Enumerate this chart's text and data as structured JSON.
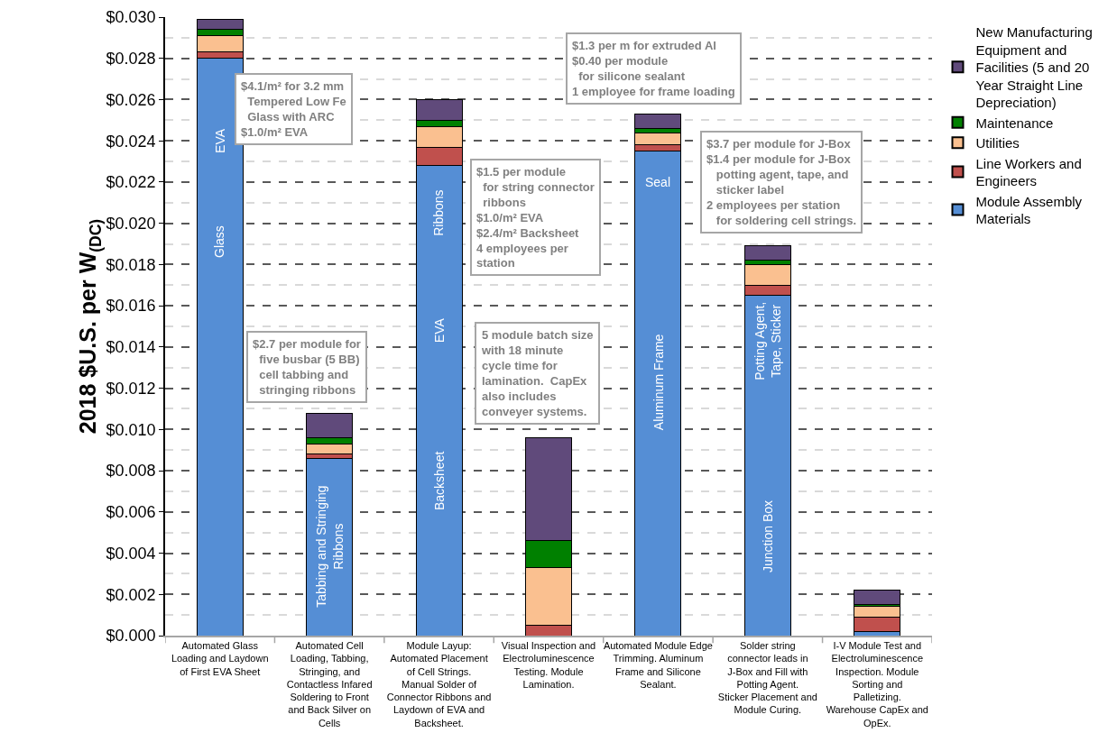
{
  "chart_data": {
    "type": "bar",
    "stacked": true,
    "ylabel": "2018 $U.S. per W$_{(DC)}$",
    "categories": [
      "Automated Glass Loading and Laydown of First EVA Sheet",
      "Automated Cell Loading, Tabbing, Stringing, and Contactless Infared Soldering to Front and Back Silver on Cells",
      "Module Layup: Automated Placement of Cell Strings. Manual Solder of Connector Ribbons and Laydown of EVA and Backsheet.",
      "Visual Inspection and Electroluminescence Testing. Module Lamination.",
      "Automated Module Edge Trimming. Aluminum Frame and Silicone Sealant.",
      "Solder string connector leads in J-Box and Fill with Potting Agent. Sticker Placement and Module Curing.",
      "I-V Module Test and Electroluminescence Inspection. Module Sorting and Palletizing. Warehouse CapEx and OpEx."
    ],
    "series": [
      {
        "name": "Module Assembly Materials",
        "color": "#558ed5",
        "values": [
          0.028,
          0.0086,
          0.0228,
          0,
          0.0235,
          0.0165,
          0.0002
        ]
      },
      {
        "name": "Line Workers and Engineers",
        "color": "#c0504d",
        "values": [
          0.0003,
          0.0002,
          0.0009,
          0.0005,
          0.0003,
          0.0005,
          0.0007
        ]
      },
      {
        "name": "Utilities",
        "color": "#fac090",
        "values": [
          0.0008,
          0.0005,
          0.001,
          0.0028,
          0.0006,
          0.001,
          0.0005
        ]
      },
      {
        "name": "Maintenance",
        "color": "#008000",
        "values": [
          0.0003,
          0.0003,
          0.0003,
          0.0013,
          0.0002,
          0.0002,
          0.0001
        ]
      },
      {
        "name": "New Manufacturing Equipment and Facilities (5 and 20 Year Straight Line Depreciation)",
        "color": "#604a7b",
        "values": [
          0.0005,
          0.0012,
          0.001,
          0.005,
          0.0007,
          0.0007,
          0.0007
        ]
      }
    ],
    "ylim": [
      0,
      0.03
    ],
    "yticks": [
      {
        "value": 0,
        "label": "$0.000"
      },
      {
        "value": 0.002,
        "label": "$0.002"
      },
      {
        "value": 0.004,
        "label": "$0.004"
      },
      {
        "value": 0.006,
        "label": "$0.006"
      },
      {
        "value": 0.008,
        "label": "$0.008"
      },
      {
        "value": 0.01,
        "label": "$0.010"
      },
      {
        "value": 0.012,
        "label": "$0.012"
      },
      {
        "value": 0.014,
        "label": "$0.014"
      },
      {
        "value": 0.016,
        "label": "$0.016"
      },
      {
        "value": 0.018,
        "label": "$0.018"
      },
      {
        "value": 0.02,
        "label": "$0.020"
      },
      {
        "value": 0.022,
        "label": "$0.022"
      },
      {
        "value": 0.024,
        "label": "$0.024"
      },
      {
        "value": 0.026,
        "label": "$0.026"
      },
      {
        "value": 0.028,
        "label": "$0.028"
      },
      {
        "value": 0.03,
        "label": "$0.030"
      }
    ],
    "grid": "y",
    "legend": "right",
    "annotations": [
      "$4.1/m² for 3.2 mm\n  Tempered Low Fe\n  Glass with ARC\n$1.0/m² EVA",
      "$2.7 per module for\n  five busbar (5 BB)\n  cell tabbing and\n  stringing ribbons",
      "$1.5 per module\n  for string connector\n  ribbons\n$1.0/m² EVA\n$2.4/m² Backsheet\n4 employees per\nstation",
      "5 module batch size\nwith 18 minute\ncycle time for\nlamination.  CapEx\nalso includes\nconveyer systems.",
      "$1.3 per m for extruded Al\n$0.40 per module\n  for silicone sealant\n1 employee for frame loading",
      "$3.7 per module for J-Box\n$1.4 per module for J-Box\n   potting agent, tape, and\n   sticker label\n2 employees per station\n   for soldering cell strings.",
      "EVA",
      "Glass",
      "Tabbing and Stringing\nRibbons",
      "Ribbons",
      "EVA",
      "Backsheet",
      "Seal",
      "Aluminum Frame",
      "Potting Agent,\nTape, Sticker",
      "Junction Box"
    ]
  }
}
